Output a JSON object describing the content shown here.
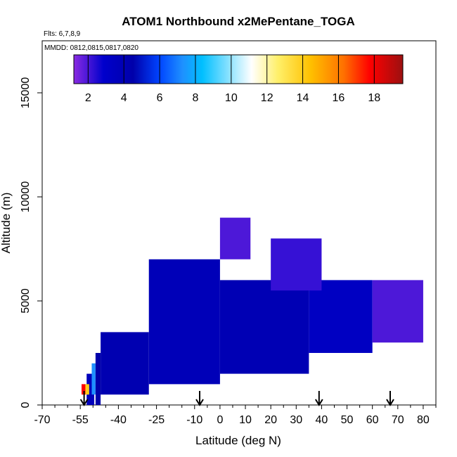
{
  "chart_data": {
    "type": "heatmap",
    "title": "ATOM1 Northbound x2MePentane_TOGA",
    "subtitle_flights": "Flts: 6,7,8,9",
    "subtitle_dates": "MMDD: 0812,0815,0817,0820",
    "xlabel": "Latitude (deg N)",
    "ylabel": "Altitude (m)",
    "xlim": [
      -70,
      85
    ],
    "ylim": [
      0,
      17500
    ],
    "x_ticks": [
      "-70",
      "-55",
      "-40",
      "-25",
      "-10",
      "0",
      "10",
      "20",
      "30",
      "40",
      "50",
      "60",
      "70",
      "80"
    ],
    "x_tick_values": [
      -70,
      -55,
      -40,
      -25,
      -10,
      0,
      10,
      20,
      30,
      40,
      50,
      60,
      70,
      80
    ],
    "y_ticks": [
      "0",
      "5000",
      "10000",
      "15000"
    ],
    "y_tick_values": [
      0,
      5000,
      10000,
      15000
    ],
    "colorbar": {
      "range": [
        1.2,
        19.6
      ],
      "tick_labels": [
        "2",
        "4",
        "6",
        "8",
        "10",
        "12",
        "14",
        "16",
        "18"
      ],
      "tick_values": [
        2,
        4,
        6,
        8,
        10,
        12,
        14,
        16,
        18
      ],
      "colors": [
        "#8a2be2",
        "#0000aa",
        "#0000ff",
        "#1e90ff",
        "#00bfff",
        "#ffffff",
        "#ffff66",
        "#ffd700",
        "#ff8c00",
        "#ff0000",
        "#8b0000"
      ]
    },
    "arrow_latitudes": [
      -53.5,
      -8,
      39,
      67
    ],
    "regions": [
      {
        "lat": [
          -52.5,
          -49.5
        ],
        "alt": [
          0,
          1500
        ],
        "value": 3.5
      },
      {
        "lat": [
          -53.5,
          -51.5
        ],
        "alt": [
          500,
          1000
        ],
        "value": 14
      },
      {
        "lat": [
          -54.5,
          -53
        ],
        "alt": [
          500,
          1000
        ],
        "value": 18
      },
      {
        "lat": [
          -50.5,
          -49
        ],
        "alt": [
          500,
          2000
        ],
        "value": 7
      },
      {
        "lat": [
          -49,
          -47
        ],
        "alt": [
          0,
          2500
        ],
        "value": 4
      },
      {
        "lat": [
          -47,
          -28
        ],
        "alt": [
          500,
          3500
        ],
        "value": 3.8
      },
      {
        "lat": [
          -28,
          0
        ],
        "alt": [
          1000,
          7000
        ],
        "value": 3.6
      },
      {
        "lat": [
          0,
          35
        ],
        "alt": [
          1500,
          6000
        ],
        "value": 3.7
      },
      {
        "lat": [
          35,
          60
        ],
        "alt": [
          2500,
          6000
        ],
        "value": 3.3
      },
      {
        "lat": [
          0,
          12
        ],
        "alt": [
          7000,
          9000
        ],
        "value": 2.0
      },
      {
        "lat": [
          20,
          40
        ],
        "alt": [
          5500,
          8000
        ],
        "value": 2.3
      },
      {
        "lat": [
          60,
          80
        ],
        "alt": [
          3000,
          6000
        ],
        "value": 2.0
      }
    ]
  }
}
